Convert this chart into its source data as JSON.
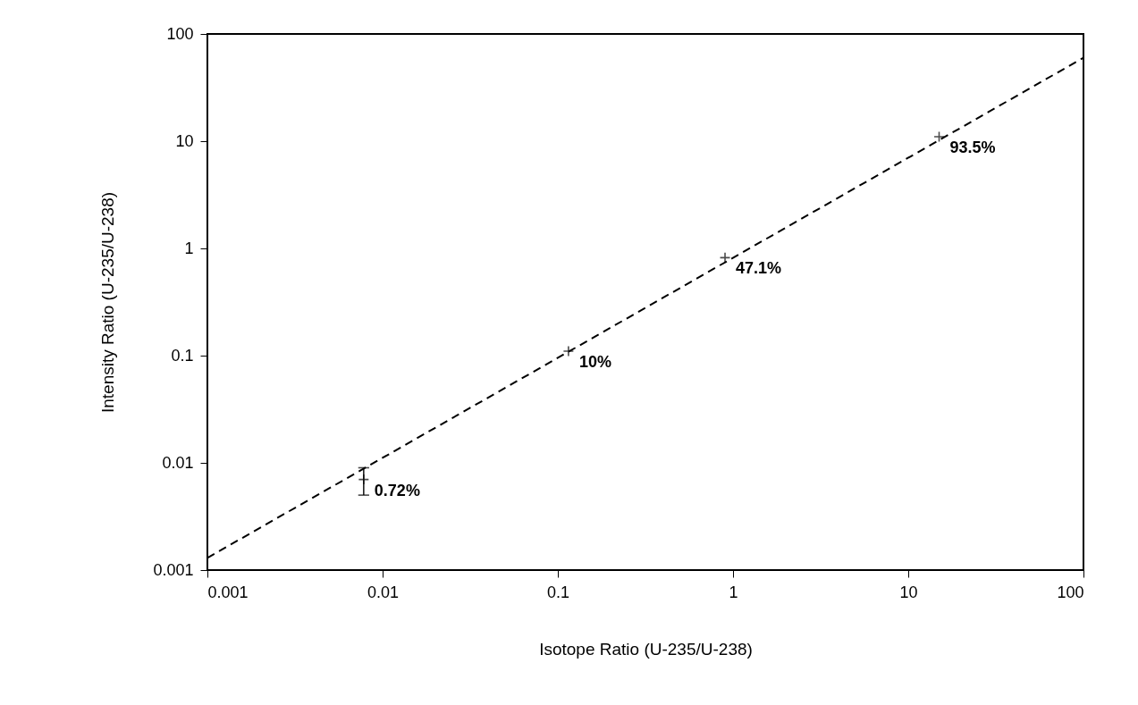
{
  "chart_data": {
    "type": "scatter",
    "xlabel": "Isotope Ratio (U-235/U-238)",
    "ylabel": "Intensity Ratio (U-235/U-238)",
    "log": "xy",
    "grid": false,
    "xlim": [
      0.001,
      100
    ],
    "ylim": [
      0.001,
      100
    ],
    "xticks": [
      0.001,
      0.01,
      0.1,
      1,
      10,
      100
    ],
    "yticks": [
      0.001,
      0.01,
      0.1,
      1,
      10,
      100
    ],
    "series": [
      {
        "color": "#000000",
        "marker": "cross",
        "x": [
          0.0078,
          0.115,
          0.9,
          15
        ],
        "values": [
          0.007,
          0.11,
          0.82,
          11
        ],
        "errors": [
          [
            0.005,
            0.009
          ],
          null,
          null,
          null
        ]
      },
      {
        "type": "line",
        "color": "#000000",
        "line_style": "dashed",
        "marker": "none",
        "x": [
          0.001,
          100
        ],
        "values": [
          0.0013,
          60
        ]
      }
    ],
    "annotations": [
      {
        "text": "0.72%",
        "x": 0.0078,
        "y": 0.007
      },
      {
        "text": "10%",
        "x": 0.115,
        "y": 0.11
      },
      {
        "text": "47.1%",
        "x": 0.9,
        "y": 0.82
      },
      {
        "text": "93.5%",
        "x": 15,
        "y": 11
      }
    ]
  }
}
